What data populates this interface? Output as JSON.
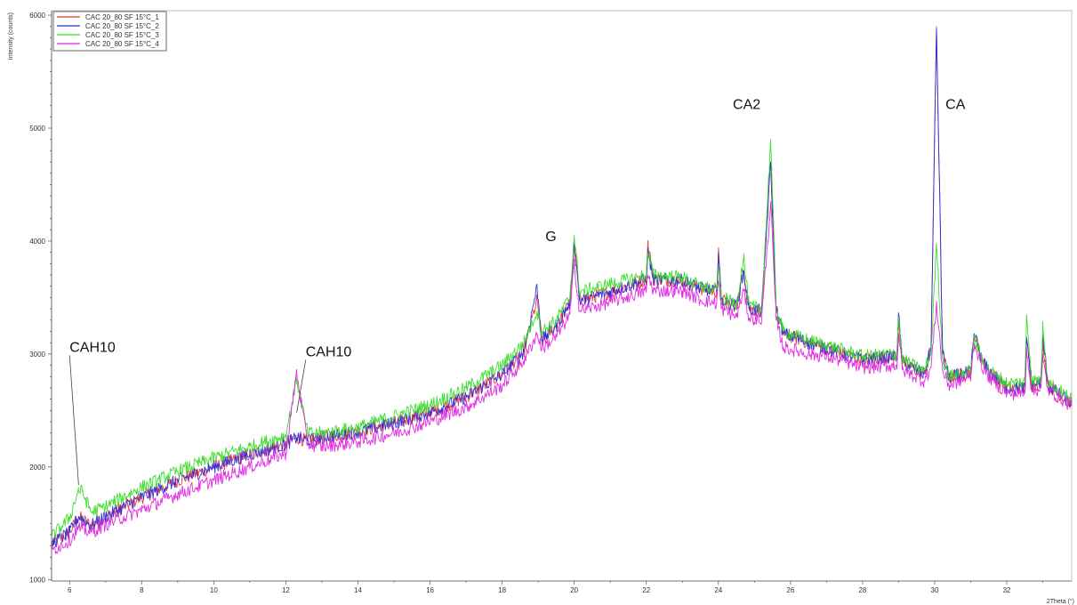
{
  "chart_data": {
    "type": "line",
    "xlabel": "2Theta (°)",
    "ylabel": "Intensity (counts)",
    "xlim": [
      5.5,
      33.8
    ],
    "ylim": [
      990,
      6040
    ],
    "x_ticks": [
      6,
      8,
      10,
      12,
      14,
      16,
      18,
      20,
      22,
      24,
      26,
      28,
      30,
      32
    ],
    "y_ticks": [
      1000,
      2000,
      3000,
      4000,
      5000,
      6000
    ],
    "legend_position": "top-left",
    "grid": false,
    "series": [
      {
        "name": "CAC 20_80 SF 15°C_1",
        "color": "#e8333a",
        "noise": 60,
        "points": [
          [
            5.5,
            1320
          ],
          [
            6.0,
            1420
          ],
          [
            6.25,
            1560
          ],
          [
            6.35,
            1540
          ],
          [
            6.6,
            1480
          ],
          [
            7.0,
            1560
          ],
          [
            8.0,
            1730
          ],
          [
            9.0,
            1880
          ],
          [
            10.0,
            2000
          ],
          [
            11.0,
            2110
          ],
          [
            12.0,
            2200
          ],
          [
            12.3,
            2260
          ],
          [
            12.6,
            2230
          ],
          [
            13.0,
            2260
          ],
          [
            14.0,
            2310
          ],
          [
            15.0,
            2390
          ],
          [
            16.0,
            2480
          ],
          [
            17.0,
            2620
          ],
          [
            18.0,
            2820
          ],
          [
            18.6,
            3020
          ],
          [
            18.97,
            3480
          ],
          [
            19.1,
            3120
          ],
          [
            19.5,
            3250
          ],
          [
            19.88,
            3450
          ],
          [
            20.0,
            3980
          ],
          [
            20.15,
            3470
          ],
          [
            21.0,
            3550
          ],
          [
            22.0,
            3660
          ],
          [
            22.04,
            3980
          ],
          [
            22.2,
            3660
          ],
          [
            23.0,
            3650
          ],
          [
            23.5,
            3580
          ],
          [
            23.95,
            3550
          ],
          [
            24.0,
            3900
          ],
          [
            24.08,
            3480
          ],
          [
            24.5,
            3420
          ],
          [
            24.7,
            3740
          ],
          [
            24.85,
            3400
          ],
          [
            25.2,
            3380
          ],
          [
            25.45,
            4700
          ],
          [
            25.6,
            3400
          ],
          [
            25.8,
            3180
          ],
          [
            26.5,
            3100
          ],
          [
            27.0,
            3050
          ],
          [
            28.0,
            2950
          ],
          [
            28.95,
            2980
          ],
          [
            29.0,
            3300
          ],
          [
            29.1,
            2930
          ],
          [
            29.7,
            2820
          ],
          [
            29.9,
            3050
          ],
          [
            30.05,
            5900
          ],
          [
            30.22,
            3000
          ],
          [
            30.4,
            2790
          ],
          [
            31.0,
            2840
          ],
          [
            31.1,
            3180
          ],
          [
            31.3,
            2950
          ],
          [
            31.5,
            2850
          ],
          [
            32.0,
            2700
          ],
          [
            32.5,
            2700
          ],
          [
            32.55,
            3120
          ],
          [
            32.7,
            2720
          ],
          [
            32.95,
            2750
          ],
          [
            33.0,
            3100
          ],
          [
            33.15,
            2720
          ],
          [
            33.8,
            2560
          ]
        ]
      },
      {
        "name": "CAC 20_80 SF 15°C_2",
        "color": "#2a2ae0",
        "noise": 60,
        "points": [
          [
            5.5,
            1320
          ],
          [
            6.0,
            1420
          ],
          [
            6.25,
            1560
          ],
          [
            6.35,
            1540
          ],
          [
            6.6,
            1480
          ],
          [
            7.0,
            1560
          ],
          [
            8.0,
            1730
          ],
          [
            9.0,
            1880
          ],
          [
            10.0,
            2000
          ],
          [
            11.0,
            2110
          ],
          [
            12.0,
            2200
          ],
          [
            12.3,
            2260
          ],
          [
            12.6,
            2230
          ],
          [
            13.0,
            2260
          ],
          [
            14.0,
            2310
          ],
          [
            15.0,
            2390
          ],
          [
            16.0,
            2480
          ],
          [
            17.0,
            2620
          ],
          [
            18.0,
            2820
          ],
          [
            18.6,
            3020
          ],
          [
            18.97,
            3600
          ],
          [
            19.1,
            3120
          ],
          [
            19.5,
            3250
          ],
          [
            19.88,
            3450
          ],
          [
            20.0,
            3980
          ],
          [
            20.15,
            3470
          ],
          [
            21.0,
            3550
          ],
          [
            22.0,
            3660
          ],
          [
            22.04,
            3900
          ],
          [
            22.2,
            3660
          ],
          [
            23.0,
            3650
          ],
          [
            23.5,
            3580
          ],
          [
            23.95,
            3550
          ],
          [
            24.0,
            3900
          ],
          [
            24.08,
            3480
          ],
          [
            24.5,
            3420
          ],
          [
            24.7,
            3740
          ],
          [
            24.85,
            3400
          ],
          [
            25.2,
            3380
          ],
          [
            25.45,
            4700
          ],
          [
            25.6,
            3400
          ],
          [
            25.8,
            3180
          ],
          [
            26.5,
            3100
          ],
          [
            27.0,
            3050
          ],
          [
            28.0,
            2950
          ],
          [
            28.95,
            2980
          ],
          [
            29.0,
            3350
          ],
          [
            29.1,
            2930
          ],
          [
            29.7,
            2820
          ],
          [
            29.9,
            3050
          ],
          [
            30.05,
            5880
          ],
          [
            30.22,
            3000
          ],
          [
            30.4,
            2790
          ],
          [
            31.0,
            2840
          ],
          [
            31.1,
            3180
          ],
          [
            31.3,
            2950
          ],
          [
            31.5,
            2850
          ],
          [
            32.0,
            2700
          ],
          [
            32.5,
            2700
          ],
          [
            32.55,
            3150
          ],
          [
            32.7,
            2720
          ],
          [
            32.95,
            2750
          ],
          [
            33.0,
            3150
          ],
          [
            33.15,
            2720
          ],
          [
            33.8,
            2560
          ]
        ]
      },
      {
        "name": "CAC 20_80 SF 15°C_3",
        "color": "#33dd22",
        "noise": 60,
        "points": [
          [
            5.5,
            1380
          ],
          [
            6.0,
            1550
          ],
          [
            6.25,
            1800
          ],
          [
            6.35,
            1780
          ],
          [
            6.6,
            1600
          ],
          [
            7.0,
            1650
          ],
          [
            8.0,
            1820
          ],
          [
            9.0,
            1960
          ],
          [
            10.0,
            2080
          ],
          [
            11.0,
            2180
          ],
          [
            12.0,
            2280
          ],
          [
            12.3,
            2780
          ],
          [
            12.6,
            2300
          ],
          [
            13.0,
            2300
          ],
          [
            14.0,
            2350
          ],
          [
            15.0,
            2450
          ],
          [
            16.0,
            2550
          ],
          [
            17.0,
            2700
          ],
          [
            18.0,
            2900
          ],
          [
            18.6,
            3100
          ],
          [
            18.97,
            3380
          ],
          [
            19.1,
            3200
          ],
          [
            19.5,
            3300
          ],
          [
            19.88,
            3500
          ],
          [
            20.0,
            4050
          ],
          [
            20.15,
            3550
          ],
          [
            21.0,
            3620
          ],
          [
            22.0,
            3700
          ],
          [
            22.04,
            3900
          ],
          [
            22.2,
            3700
          ],
          [
            23.0,
            3680
          ],
          [
            23.5,
            3600
          ],
          [
            23.95,
            3570
          ],
          [
            24.0,
            3750
          ],
          [
            24.08,
            3500
          ],
          [
            24.5,
            3440
          ],
          [
            24.7,
            3860
          ],
          [
            24.85,
            3420
          ],
          [
            25.2,
            3400
          ],
          [
            25.45,
            4900
          ],
          [
            25.6,
            3420
          ],
          [
            25.8,
            3200
          ],
          [
            26.5,
            3120
          ],
          [
            27.0,
            3080
          ],
          [
            28.0,
            2980
          ],
          [
            28.95,
            3000
          ],
          [
            29.0,
            3330
          ],
          [
            29.1,
            2950
          ],
          [
            29.7,
            2850
          ],
          [
            29.9,
            3000
          ],
          [
            30.05,
            3980
          ],
          [
            30.22,
            2950
          ],
          [
            30.4,
            2800
          ],
          [
            31.0,
            2850
          ],
          [
            31.1,
            3150
          ],
          [
            31.3,
            2960
          ],
          [
            31.5,
            2860
          ],
          [
            32.0,
            2740
          ],
          [
            32.5,
            2750
          ],
          [
            32.55,
            3350
          ],
          [
            32.7,
            2760
          ],
          [
            32.95,
            2780
          ],
          [
            33.0,
            3250
          ],
          [
            33.15,
            2750
          ],
          [
            33.8,
            2600
          ]
        ]
      },
      {
        "name": "CAC 20_80 SF 15°C_4",
        "color": "#e020e0",
        "noise": 60,
        "points": [
          [
            5.5,
            1260
          ],
          [
            6.0,
            1350
          ],
          [
            6.25,
            1460
          ],
          [
            6.35,
            1450
          ],
          [
            6.6,
            1420
          ],
          [
            7.0,
            1490
          ],
          [
            8.0,
            1620
          ],
          [
            9.0,
            1760
          ],
          [
            10.0,
            1880
          ],
          [
            11.0,
            2000
          ],
          [
            12.0,
            2120
          ],
          [
            12.3,
            2840
          ],
          [
            12.6,
            2200
          ],
          [
            13.0,
            2180
          ],
          [
            14.0,
            2220
          ],
          [
            15.0,
            2300
          ],
          [
            16.0,
            2400
          ],
          [
            17.0,
            2530
          ],
          [
            18.0,
            2720
          ],
          [
            18.6,
            2940
          ],
          [
            18.97,
            3180
          ],
          [
            19.1,
            3050
          ],
          [
            19.5,
            3150
          ],
          [
            19.88,
            3350
          ],
          [
            20.0,
            3800
          ],
          [
            20.15,
            3380
          ],
          [
            21.0,
            3460
          ],
          [
            22.0,
            3560
          ],
          [
            22.04,
            3700
          ],
          [
            22.2,
            3560
          ],
          [
            23.0,
            3560
          ],
          [
            23.5,
            3480
          ],
          [
            23.95,
            3450
          ],
          [
            24.0,
            3650
          ],
          [
            24.08,
            3400
          ],
          [
            24.5,
            3330
          ],
          [
            24.7,
            3560
          ],
          [
            24.85,
            3320
          ],
          [
            25.2,
            3300
          ],
          [
            25.45,
            4350
          ],
          [
            25.6,
            3300
          ],
          [
            25.8,
            3060
          ],
          [
            26.5,
            3000
          ],
          [
            27.0,
            2980
          ],
          [
            28.0,
            2880
          ],
          [
            28.95,
            2900
          ],
          [
            29.0,
            3180
          ],
          [
            29.1,
            2860
          ],
          [
            29.7,
            2760
          ],
          [
            29.9,
            2880
          ],
          [
            30.05,
            3450
          ],
          [
            30.22,
            2850
          ],
          [
            30.4,
            2720
          ],
          [
            31.0,
            2800
          ],
          [
            31.1,
            3100
          ],
          [
            31.3,
            2900
          ],
          [
            31.5,
            2800
          ],
          [
            32.0,
            2650
          ],
          [
            32.5,
            2650
          ],
          [
            32.55,
            3050
          ],
          [
            32.7,
            2660
          ],
          [
            32.95,
            2700
          ],
          [
            33.0,
            2950
          ],
          [
            33.15,
            2680
          ],
          [
            33.8,
            2540
          ]
        ]
      }
    ],
    "annotations": [
      {
        "text": "CAH10",
        "x": 6.0,
        "y": 3020,
        "leader_to": [
          6.25,
          1840
        ]
      },
      {
        "text": "CAH10",
        "x": 12.55,
        "y": 2980,
        "leader_to": [
          12.3,
          2480
        ]
      },
      {
        "text": "G",
        "x": 19.2,
        "y": 4000,
        "leader_to": null
      },
      {
        "text": "CA2",
        "x": 24.4,
        "y": 5170,
        "leader_to": null
      },
      {
        "text": "CA",
        "x": 30.3,
        "y": 5170,
        "leader_to": null
      }
    ]
  }
}
